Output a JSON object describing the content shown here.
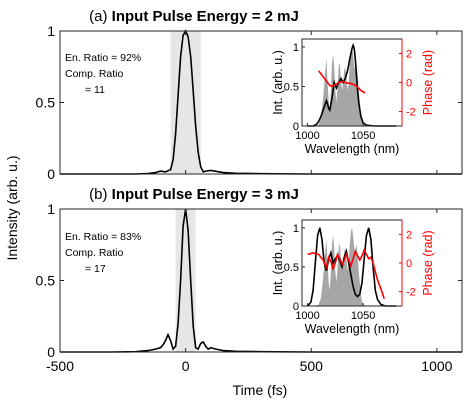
{
  "figure": {
    "ylabel": "Intensity (arb. u.)",
    "xlabel": "Time (fs)",
    "xticks": [
      "-500",
      "0",
      "500",
      "1000"
    ]
  },
  "chart_data": [
    {
      "type": "line",
      "panel_label": "(a)",
      "title": "Input Pulse Energy = 2 mJ",
      "xlabel": "",
      "ylabel": "",
      "xlim": [
        -500,
        1100
      ],
      "ylim": [
        0,
        1
      ],
      "xticks": [
        -500,
        0,
        500,
        1000
      ],
      "yticks": [
        0,
        0.5,
        1
      ],
      "ytick_labels": [
        "0",
        "0.5",
        "1"
      ],
      "annotations": [
        "En. Ratio = 92%",
        "Comp. Ratio",
        "= 11"
      ],
      "shaded_band": [
        -60,
        60
      ],
      "series": [
        {
          "color": "#000000",
          "x": [
            -500,
            -300,
            -200,
            -150,
            -120,
            -100,
            -80,
            -60,
            -50,
            -40,
            -30,
            -20,
            -10,
            0,
            10,
            20,
            30,
            40,
            50,
            60,
            70,
            80,
            100,
            150,
            200,
            300,
            500,
            800,
            1100
          ],
          "y": [
            0,
            0,
            0,
            0.003,
            0.01,
            0.02,
            0.015,
            0.03,
            0.1,
            0.28,
            0.55,
            0.82,
            0.97,
            1.0,
            0.96,
            0.82,
            0.58,
            0.33,
            0.15,
            0.05,
            0.015,
            0.02,
            0.025,
            0.01,
            0.005,
            0.002,
            0,
            0,
            0
          ]
        }
      ],
      "inset": {
        "xlabel": "Wavelength (nm)",
        "ylabel_left": "Int. (arb. u.)",
        "ylabel_right": "Phase (rad)",
        "xlim": [
          995,
          1085
        ],
        "xticks": [
          1000,
          1050
        ],
        "ylim_left": [
          0,
          1.1
        ],
        "yticks_left": [
          0,
          0.5,
          1
        ],
        "ylim_right": [
          -3,
          3
        ],
        "yticks_right": [
          -2,
          0,
          2
        ],
        "spectrum_fill": {
          "color": "#a6a6a6",
          "x": [
            1008,
            1010,
            1012,
            1014,
            1016,
            1017,
            1018,
            1019,
            1020,
            1021,
            1022,
            1023,
            1024,
            1025,
            1026,
            1027,
            1028,
            1029,
            1030,
            1031,
            1032,
            1033,
            1034,
            1035,
            1036,
            1037,
            1038,
            1039,
            1040,
            1041,
            1042,
            1043,
            1044,
            1045,
            1046,
            1047,
            1048,
            1049,
            1050,
            1052,
            1054
          ],
          "y": [
            0,
            0.02,
            0.1,
            0.35,
            0.7,
            0.85,
            0.55,
            0.3,
            0.2,
            0.45,
            0.8,
            0.9,
            0.75,
            0.45,
            0.3,
            0.5,
            0.75,
            0.8,
            0.6,
            0.45,
            0.55,
            0.7,
            0.75,
            0.6,
            0.45,
            0.55,
            0.8,
            0.95,
            1.0,
            0.9,
            0.75,
            0.7,
            0.8,
            0.65,
            0.45,
            0.3,
            0.15,
            0.06,
            0.02,
            0.005,
            0
          ]
        },
        "intensity_line": {
          "color": "#000000",
          "x": [
            1000,
            1005,
            1008,
            1010,
            1012,
            1014,
            1016,
            1017,
            1018,
            1019,
            1020,
            1022,
            1024,
            1026,
            1028,
            1030,
            1032,
            1034,
            1036,
            1038,
            1040,
            1041,
            1042,
            1043,
            1044,
            1045,
            1046,
            1048,
            1050,
            1053,
            1060,
            1070,
            1080
          ],
          "y": [
            0,
            0,
            0.02,
            0.06,
            0.12,
            0.2,
            0.28,
            0.32,
            0.28,
            0.22,
            0.2,
            0.35,
            0.55,
            0.48,
            0.55,
            0.6,
            0.55,
            0.6,
            0.7,
            0.85,
            0.98,
            1.02,
            0.98,
            0.85,
            0.65,
            0.45,
            0.3,
            0.12,
            0.04,
            0.01,
            0,
            0,
            0
          ]
        },
        "phase_line": {
          "color": "#ff0000",
          "x": [
            1010,
            1014,
            1018,
            1020,
            1022,
            1024,
            1026,
            1028,
            1030,
            1032,
            1034,
            1036,
            1038,
            1040,
            1042,
            1044,
            1046,
            1048,
            1050,
            1052
          ],
          "y": [
            0.8,
            0.4,
            0.0,
            -0.2,
            -0.25,
            -0.2,
            -0.1,
            0.0,
            0.05,
            0.05,
            0.0,
            -0.05,
            -0.05,
            -0.1,
            -0.15,
            -0.25,
            -0.4,
            -0.55,
            -0.65,
            -0.7
          ]
        }
      }
    },
    {
      "type": "line",
      "panel_label": "(b)",
      "title": "Input Pulse Energy = 3 mJ",
      "xlabel": "",
      "ylabel": "",
      "xlim": [
        -500,
        1100
      ],
      "ylim": [
        0,
        1
      ],
      "xticks": [
        -500,
        0,
        500,
        1000
      ],
      "yticks": [
        0,
        0.5,
        1
      ],
      "ytick_labels": [
        "0",
        "0.5",
        "1"
      ],
      "annotations": [
        "En. Ratio = 83%",
        "Comp. Ratio",
        "= 17"
      ],
      "shaded_band": [
        -40,
        40
      ],
      "series": [
        {
          "color": "#000000",
          "x": [
            -500,
            -300,
            -200,
            -150,
            -120,
            -100,
            -90,
            -80,
            -70,
            -60,
            -50,
            -40,
            -30,
            -20,
            -10,
            0,
            10,
            20,
            30,
            40,
            50,
            60,
            70,
            80,
            90,
            100,
            120,
            150,
            200,
            300,
            500,
            800,
            1100
          ],
          "y": [
            0,
            0,
            0.002,
            0.01,
            0.02,
            0.03,
            0.05,
            0.08,
            0.12,
            0.08,
            0.02,
            0.04,
            0.2,
            0.5,
            0.88,
            1.0,
            0.85,
            0.5,
            0.18,
            0.03,
            0.02,
            0.06,
            0.07,
            0.04,
            0.02,
            0.03,
            0.02,
            0.01,
            0.005,
            0.002,
            0,
            0,
            0
          ]
        }
      ],
      "inset": {
        "xlabel": "Wavelength (nm)",
        "ylabel_left": "Int. (arb. u.)",
        "ylabel_right": "Phase (rad)",
        "xlim": [
          995,
          1085
        ],
        "xticks": [
          1000,
          1050
        ],
        "ylim_left": [
          0,
          1.1
        ],
        "yticks_left": [
          0,
          0.5,
          1
        ],
        "ylim_right": [
          -3,
          3
        ],
        "yticks_right": [
          -2,
          0,
          2
        ],
        "spectrum_fill": {
          "color": "#a6a6a6",
          "x": [
            1008,
            1010,
            1012,
            1014,
            1016,
            1017,
            1018,
            1019,
            1020,
            1021,
            1022,
            1023,
            1024,
            1025,
            1026,
            1027,
            1028,
            1029,
            1030,
            1031,
            1032,
            1033,
            1034,
            1035,
            1036,
            1037,
            1038,
            1039,
            1040,
            1041,
            1042,
            1043,
            1044,
            1045,
            1046,
            1047,
            1048,
            1049,
            1050,
            1052,
            1054
          ],
          "y": [
            0,
            0.02,
            0.1,
            0.35,
            0.7,
            0.85,
            0.55,
            0.3,
            0.2,
            0.45,
            0.8,
            0.9,
            0.75,
            0.45,
            0.3,
            0.5,
            0.75,
            0.8,
            0.6,
            0.45,
            0.55,
            0.7,
            0.75,
            0.6,
            0.45,
            0.55,
            0.8,
            0.95,
            1.0,
            0.9,
            0.75,
            0.7,
            0.8,
            0.65,
            0.45,
            0.3,
            0.15,
            0.06,
            0.02,
            0.005,
            0
          ]
        },
        "intensity_line": {
          "color": "#000000",
          "x": [
            1000,
            1003,
            1005,
            1007,
            1009,
            1011,
            1013,
            1015,
            1017,
            1019,
            1021,
            1023,
            1025,
            1027,
            1029,
            1031,
            1033,
            1035,
            1037,
            1039,
            1041,
            1043,
            1045,
            1047,
            1049,
            1051,
            1053,
            1055,
            1057,
            1059,
            1061,
            1063,
            1066,
            1070,
            1080
          ],
          "y": [
            0,
            0.05,
            0.2,
            0.55,
            0.9,
            1.0,
            0.85,
            0.55,
            0.45,
            0.6,
            0.68,
            0.55,
            0.6,
            0.65,
            0.58,
            0.5,
            0.62,
            0.7,
            0.55,
            0.4,
            0.25,
            0.15,
            0.12,
            0.15,
            0.3,
            0.6,
            0.9,
            1.0,
            0.85,
            0.5,
            0.2,
            0.08,
            0.02,
            0,
            0
          ]
        },
        "phase_line": {
          "color": "#ff0000",
          "x": [
            1000,
            1005,
            1010,
            1014,
            1017,
            1019,
            1021,
            1023,
            1025,
            1027,
            1029,
            1031,
            1033,
            1035,
            1037,
            1039,
            1041,
            1043,
            1045,
            1047,
            1049,
            1051,
            1053,
            1055,
            1057,
            1059,
            1061,
            1063,
            1066,
            1069
          ],
          "y": [
            0.6,
            0.7,
            0.6,
            0.2,
            -0.3,
            0.4,
            0.1,
            -0.4,
            0.0,
            0.6,
            0.3,
            -0.1,
            0.2,
            0.6,
            0.2,
            -0.2,
            0.3,
            0.8,
            0.5,
            0.2,
            0.5,
            0.9,
            0.6,
            0.3,
            0.4,
            0.0,
            -0.6,
            -1.2,
            -1.8,
            -2.5
          ]
        }
      }
    }
  ]
}
